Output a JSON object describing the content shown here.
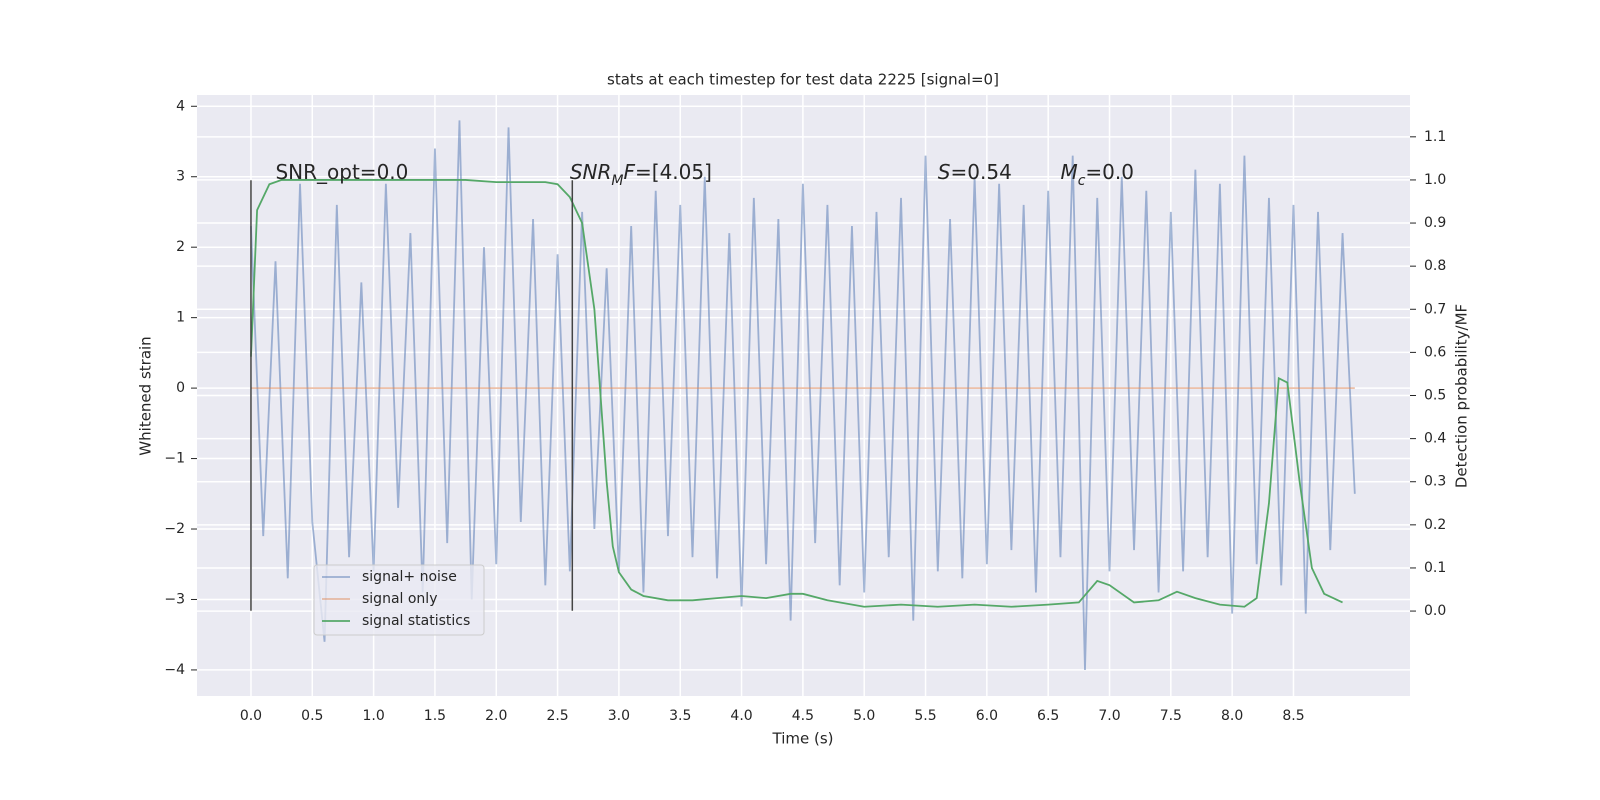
{
  "chart_data": {
    "type": "line",
    "title": "stats at each timestep for test data 2225 [signal=0]",
    "x_label": "Time (s)",
    "y_label": "Whitened strain",
    "y2_label": "Detection probability/MF",
    "xlim": [
      -0.44,
      9.45
    ],
    "ylim": [
      -4.37,
      4.16
    ],
    "y2lim": [
      -0.197,
      1.197
    ],
    "xticks": [
      {
        "value": 0,
        "label": "0.0"
      },
      0.5,
      {
        "value": 1,
        "label": "1.0"
      },
      1.5,
      {
        "value": 2,
        "label": "2.0"
      },
      2.5,
      {
        "value": 3,
        "label": "3.0"
      },
      3.5,
      {
        "value": 4,
        "label": "4.0"
      },
      4.5,
      {
        "value": 5,
        "label": "5.0"
      },
      5.5,
      {
        "value": 6,
        "label": "6.0"
      },
      6.5,
      {
        "value": 7,
        "label": "7.0"
      },
      7.5,
      {
        "value": 8,
        "label": "8.0"
      },
      8.5
    ],
    "yticks": [
      {
        "value": -4,
        "label": "−4"
      },
      {
        "value": -3,
        "label": "−3"
      },
      {
        "value": -2,
        "label": "−2"
      },
      {
        "value": -1,
        "label": "−1"
      },
      0,
      1,
      2,
      3,
      4
    ],
    "y2ticks": [
      {
        "value": 0,
        "label": "0.0"
      },
      0.1,
      0.2,
      0.3,
      0.4,
      0.5,
      0.6,
      0.7,
      0.8,
      0.9,
      {
        "value": 1,
        "label": "1.0"
      },
      1.1
    ],
    "grid": true,
    "legend": "lower left",
    "series": [
      {
        "name": "signal+ noise",
        "color": "#4c72b0",
        "opacity": 0.5,
        "x": [
          0,
          0.1,
          0.2,
          0.3,
          0.4,
          0.5,
          0.6,
          0.7,
          0.8,
          0.9,
          1,
          1.1,
          1.2,
          1.3,
          1.4,
          1.5,
          1.6,
          1.7,
          1.8,
          1.9,
          2,
          2.1,
          2.2,
          2.3,
          2.4,
          2.5,
          2.6,
          2.7,
          2.8,
          2.9,
          3,
          3.1,
          3.2,
          3.3,
          3.4,
          3.5,
          3.6,
          3.7,
          3.8,
          3.9,
          4,
          4.1,
          4.2,
          4.3,
          4.4,
          4.5,
          4.6,
          4.7,
          4.8,
          4.9,
          5,
          5.1,
          5.2,
          5.3,
          5.4,
          5.5,
          5.6,
          5.7,
          5.8,
          5.9,
          6,
          6.1,
          6.2,
          6.3,
          6.4,
          6.5,
          6.6,
          6.7,
          6.8,
          6.9,
          7,
          7.1,
          7.2,
          7.3,
          7.4,
          7.5,
          7.6,
          7.7,
          7.8,
          7.9,
          8,
          8.1,
          8.2,
          8.3,
          8.4,
          8.5,
          8.6,
          8.7,
          8.8,
          8.9,
          9
        ],
        "values": [
          2.3,
          -2.1,
          1.8,
          -2.7,
          2.9,
          -1.9,
          -3.6,
          2.6,
          -2.4,
          1.5,
          -2.6,
          2.9,
          -1.7,
          2.2,
          -2.9,
          3.4,
          -2.2,
          3.8,
          -3.0,
          2.0,
          -2.5,
          3.7,
          -1.9,
          2.4,
          -2.8,
          1.9,
          -2.6,
          2.5,
          -2.0,
          1.7,
          -2.6,
          2.3,
          -2.9,
          2.8,
          -2.1,
          2.6,
          -2.4,
          3.0,
          -2.7,
          2.2,
          -3.1,
          2.7,
          -2.5,
          2.4,
          -3.3,
          2.9,
          -2.2,
          2.6,
          -2.8,
          2.3,
          -2.9,
          2.5,
          -2.4,
          2.7,
          -3.3,
          3.3,
          -2.6,
          2.4,
          -2.7,
          3.0,
          -2.5,
          2.9,
          -2.3,
          2.6,
          -2.9,
          2.8,
          -2.4,
          3.3,
          -4.0,
          2.7,
          -2.6,
          3.0,
          -2.3,
          2.8,
          -2.9,
          2.5,
          -2.6,
          3.1,
          -2.4,
          2.9,
          -3.2,
          3.3,
          -2.5,
          2.7,
          -2.8,
          2.6,
          -3.2,
          2.5,
          -2.3,
          2.2,
          -1.5
        ]
      },
      {
        "name": "signal only",
        "color": "#dd8452",
        "opacity": 0.5,
        "x": [
          0,
          9
        ],
        "values": [
          0,
          0
        ]
      },
      {
        "name": "signal statistics",
        "color": "#55a868",
        "opacity": 1,
        "axis": "y2",
        "x": [
          0,
          0.05,
          0.15,
          0.25,
          0.5,
          1,
          1.5,
          1.75,
          2,
          2.4,
          2.5,
          2.6,
          2.7,
          2.8,
          2.85,
          2.9,
          2.95,
          3,
          3.1,
          3.2,
          3.4,
          3.6,
          3.8,
          4,
          4.2,
          4.4,
          4.5,
          4.7,
          5,
          5.3,
          5.6,
          5.9,
          6.2,
          6.5,
          6.75,
          6.9,
          7,
          7.2,
          7.4,
          7.55,
          7.7,
          7.9,
          8.1,
          8.2,
          8.3,
          8.38,
          8.45,
          8.55,
          8.65,
          8.75,
          8.9
        ],
        "values": [
          0.59,
          0.93,
          0.99,
          1.0,
          1.0,
          1.0,
          1.0,
          1.0,
          0.995,
          0.995,
          0.99,
          0.96,
          0.9,
          0.7,
          0.5,
          0.3,
          0.15,
          0.09,
          0.05,
          0.035,
          0.025,
          0.025,
          0.03,
          0.035,
          0.03,
          0.04,
          0.04,
          0.025,
          0.01,
          0.015,
          0.01,
          0.015,
          0.01,
          0.015,
          0.02,
          0.07,
          0.06,
          0.02,
          0.025,
          0.045,
          0.03,
          0.015,
          0.01,
          0.03,
          0.25,
          0.54,
          0.53,
          0.3,
          0.1,
          0.04,
          0.02
        ]
      }
    ],
    "vlines": {
      "x": [
        0,
        2.62
      ],
      "ymin": -3.16,
      "ymax": 2.95,
      "color": "#444444"
    },
    "annotations": [
      {
        "x": 0.2,
        "y": 3.05,
        "parts": [
          {
            "text": "SNR_opt=0.0"
          }
        ]
      },
      {
        "x": 2.6,
        "y": 3.05,
        "parts": [
          {
            "text": "SNR",
            "italic": true
          },
          {
            "text": "M",
            "italic": true,
            "sub": true
          },
          {
            "text": "F",
            "italic": true
          },
          {
            "text": "=[4.05]"
          }
        ]
      },
      {
        "x": 5.6,
        "y": 3.05,
        "parts": [
          {
            "text": "S",
            "italic": true
          },
          {
            "text": "=0.54"
          }
        ]
      },
      {
        "x": 6.6,
        "y": 3.05,
        "parts": [
          {
            "text": "M",
            "italic": true
          },
          {
            "text": "c",
            "italic": true,
            "sub": true
          },
          {
            "text": "=0.0"
          }
        ]
      }
    ]
  }
}
